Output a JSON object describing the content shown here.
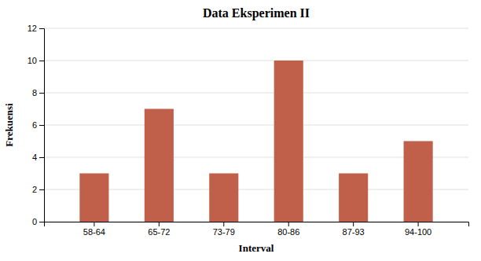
{
  "chart_data": {
    "type": "bar",
    "title": "Data Eksperimen II",
    "xlabel": "Interval",
    "ylabel": "Frekuensi",
    "categories": [
      "58-64",
      "65-72",
      "73-79",
      "80-86",
      "87-93",
      "94-100"
    ],
    "values": [
      3,
      7,
      3,
      10,
      3,
      5
    ],
    "color": "#c0604a",
    "ylim": [
      0,
      12
    ],
    "yticks": [
      0,
      2,
      4,
      6,
      8,
      10,
      12
    ],
    "grid": true
  }
}
